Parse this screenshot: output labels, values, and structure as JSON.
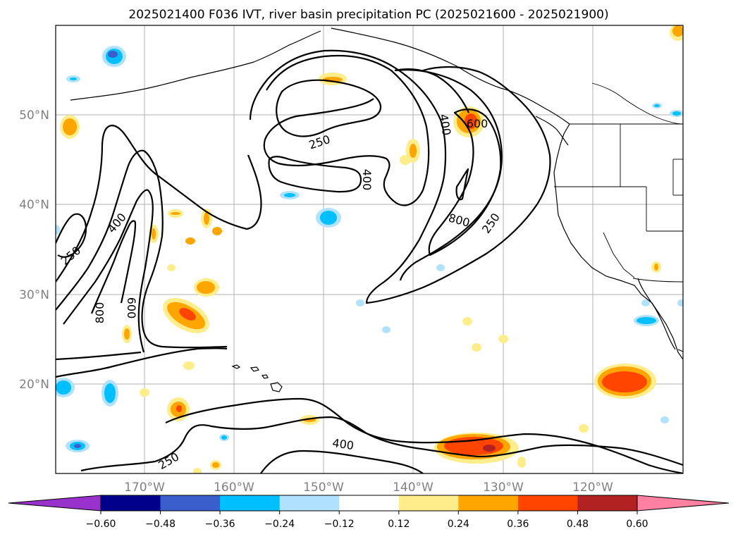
{
  "title": "2025021400 F036 IVT, river basin precipitation PC (2025021600 - 2025021900)",
  "lon_ticks": [
    "170°W",
    "160°W",
    "150°W",
    "140°W",
    "130°W",
    "120°W"
  ],
  "lat_ticks": [
    "50°N",
    "40°N",
    "30°N",
    "20°N"
  ],
  "contour_labels": [
    "250",
    "400",
    "600",
    "800"
  ],
  "colorbar": {
    "ticks": [
      "−0.60",
      "−0.48",
      "−0.36",
      "−0.24",
      "−0.12",
      "0.12",
      "0.24",
      "0.36",
      "0.48",
      "0.60"
    ],
    "under_color": "#9932cc",
    "over_color": "#ff80a0",
    "colors": [
      "#00008b",
      "#3a5fcd",
      "#00bfff",
      "#b0e2ff",
      "#ffffff",
      "#ffec8b",
      "#ffa500",
      "#ff4500",
      "#b22222"
    ]
  },
  "palette": {
    "pos1": "#ffec8b",
    "pos2": "#ffa500",
    "pos3": "#ff4500",
    "pos4": "#b22222",
    "neg1": "#b0e2ff",
    "neg2": "#00bfff",
    "neg3": "#3a5fcd",
    "neg4": "#00008b"
  }
}
